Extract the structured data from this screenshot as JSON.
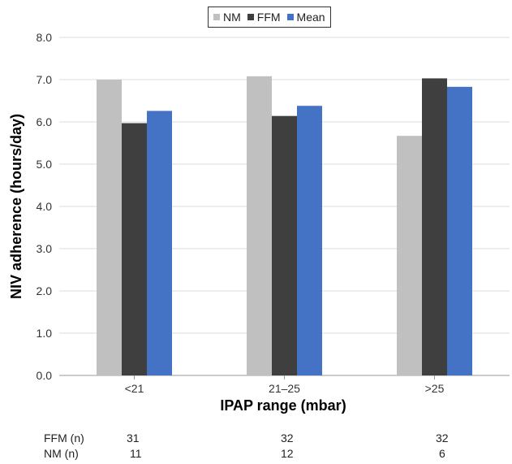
{
  "chart_data": {
    "type": "bar",
    "categories": [
      "<21",
      "21–25",
      ">25"
    ],
    "series": [
      {
        "name": "NM",
        "values": [
          7.0,
          7.08,
          5.67
        ],
        "color": "#c0c0c0"
      },
      {
        "name": "FFM",
        "values": [
          5.97,
          6.14,
          7.03
        ],
        "color": "#3f3f3f"
      },
      {
        "name": "Mean",
        "values": [
          6.26,
          6.38,
          6.83
        ],
        "color": "#4472c4"
      }
    ],
    "xlabel": "IPAP range (mbar)",
    "ylabel": "NIV adherence (hours/day)",
    "ylim": [
      0,
      8
    ],
    "yticks": [
      "0.0",
      "1.0",
      "2.0",
      "3.0",
      "4.0",
      "5.0",
      "6.0",
      "7.0",
      "8.0"
    ],
    "grid": true,
    "legend_position": "top-center"
  },
  "n_table": {
    "rows": [
      {
        "label": "FFM (n)",
        "values": [
          "31",
          "32",
          "32"
        ]
      },
      {
        "label": "NM (n)",
        "values": [
          "11",
          "12",
          "6"
        ]
      }
    ]
  }
}
